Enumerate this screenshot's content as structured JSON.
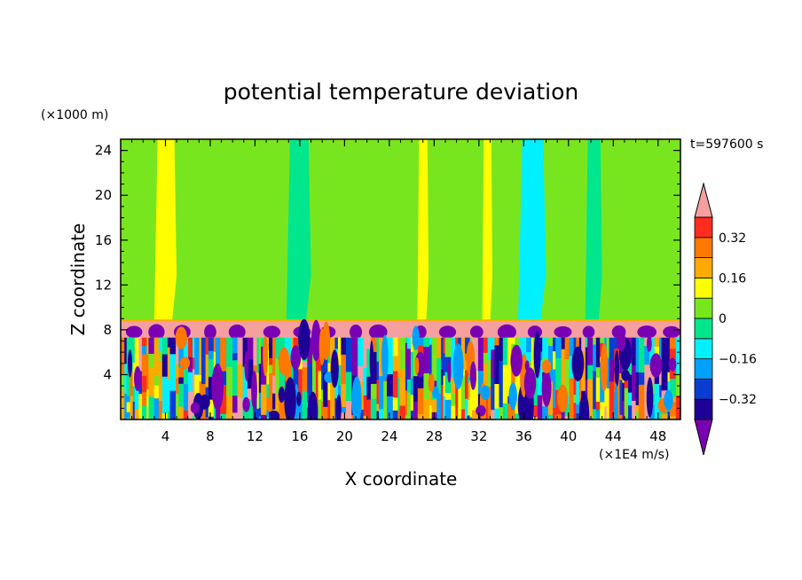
{
  "chart_data": {
    "type": "heatmap",
    "title": "potential temperature deviation",
    "xlabel": "X coordinate",
    "ylabel": "Z coordinate",
    "x_unit": "(×1E4 m/s)",
    "y_unit": "(×1000 m)",
    "time_label": "t=597600 s",
    "xlim": [
      0,
      50
    ],
    "ylim": [
      0,
      25
    ],
    "xticks": [
      4,
      8,
      12,
      16,
      20,
      24,
      28,
      32,
      36,
      40,
      44,
      48
    ],
    "yticks": [
      4,
      8,
      12,
      16,
      20,
      24
    ],
    "colorbar": {
      "levels": [
        -0.4,
        -0.32,
        -0.24,
        -0.16,
        -0.08,
        0,
        0.08,
        0.16,
        0.24,
        0.32,
        0.4
      ],
      "colors": [
        "#7a00b4",
        "#1e0096",
        "#0a3cd2",
        "#00a0ff",
        "#00f0ff",
        "#00e68c",
        "#78e61e",
        "#ffff00",
        "#ffaa00",
        "#ff7800",
        "#ff2d1e",
        "#f5a0a0"
      ],
      "tick_labels": [
        "0.32",
        "0.16",
        "0",
        "-0.16",
        "-0.32"
      ],
      "extend": "both"
    },
    "upper_layer": {
      "z_range": [
        8.8,
        25
      ],
      "background_value": 0.0,
      "column_features": [
        {
          "x": [
            3.0,
            5.0
          ],
          "value": 0.12
        },
        {
          "x": [
            1.5,
            3.0
          ],
          "value": 0.05
        },
        {
          "x": [
            5.0,
            7.5
          ],
          "value": 0.05
        },
        {
          "x": [
            13.8,
            14.8
          ],
          "value": 0.05
        },
        {
          "x": [
            14.8,
            17.0
          ],
          "value": -0.03
        },
        {
          "x": [
            26.5,
            27.5
          ],
          "value": 0.12
        },
        {
          "x": [
            28.5,
            30.5
          ],
          "value": 0.05
        },
        {
          "x": [
            32.3,
            33.2
          ],
          "value": 0.15
        },
        {
          "x": [
            35.5,
            38.0
          ],
          "value": -0.1
        },
        {
          "x": [
            40.5,
            41.5
          ],
          "value": 0.05
        },
        {
          "x": [
            41.5,
            43.0
          ],
          "value": -0.03
        }
      ]
    },
    "inversion_layer": {
      "z_range": [
        7.3,
        8.8
      ],
      "value": 0.45
    },
    "lower_layer": {
      "z_range": [
        0,
        7.3
      ],
      "value_range": [
        -0.45,
        0.45
      ],
      "structure": "turbulent vertical plumes"
    }
  }
}
